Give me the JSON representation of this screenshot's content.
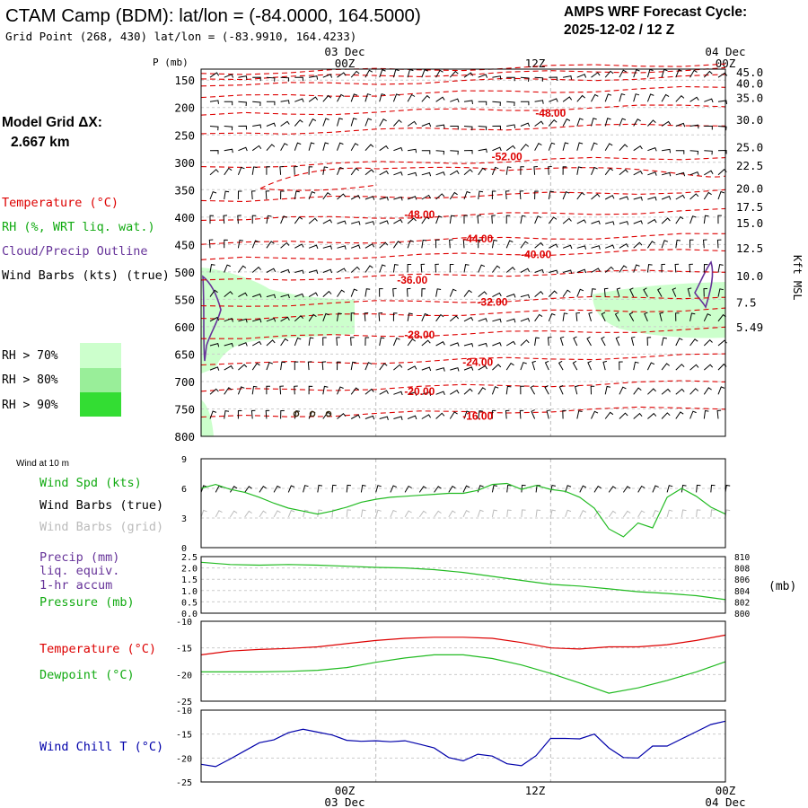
{
  "header": {
    "title": "CTAM Camp (BDM):  lat/lon = (-84.0000, 164.5000)",
    "subtitle": "Grid Point (268, 430) lat/lon = (-83.9910, 164.4233)",
    "cycle_label": "AMPS WRF Forecast Cycle:",
    "cycle_value": "2025-12-02 / 12  Z"
  },
  "side": {
    "grid_label": "Model Grid ΔX:",
    "grid_value": "2.667 km",
    "legend_temperature": "Temperature (°C)",
    "legend_rh": "RH (%, WRT liq. wat.)",
    "legend_cloud": "Cloud/Precip Outline",
    "legend_wind": "Wind Barbs (kts) (true)",
    "rh_keys": [
      {
        "label": "RH > 70%",
        "color": "#ccffcc"
      },
      {
        "label": "RH > 80%",
        "color": "#99ee99"
      },
      {
        "label": "RH > 90%",
        "color": "#33dd33"
      }
    ]
  },
  "time_axis": {
    "top_dates": [
      "03 Dec",
      "04 Dec"
    ],
    "bottom_dates": [
      "03 Dec",
      "04 Dec"
    ],
    "ticks": [
      "00Z",
      "12Z",
      "00Z"
    ]
  },
  "colors": {
    "temperature": "#dd0000",
    "rh": "#11aa11",
    "cloud": "#663399",
    "windchill": "#0000aa",
    "grid_barb": "#bbbbbb"
  },
  "chart_data": [
    {
      "type": "contour",
      "name": "time-height-cross-section",
      "ylabel": "P (mb)",
      "pressure_ticks": [
        "150",
        "200",
        "250",
        "300",
        "350",
        "400",
        "450",
        "500",
        "550",
        "600",
        "650",
        "700",
        "750",
        "800"
      ],
      "ylim_mb": [
        800,
        130
      ],
      "xlim_hours": [
        -12,
        24
      ],
      "height_ticks": [
        "45.0",
        "40.0",
        "35.0",
        "30.0",
        "25.0",
        "22.5",
        "20.0",
        "17.5",
        "15.0",
        "12.5",
        "10.0",
        "7.5",
        "5.49"
      ],
      "height_label": "Kft MSL",
      "temperature_labels": [
        {
          "text": "-48.00",
          "hour": 12,
          "p": 210
        },
        {
          "text": "-52.00",
          "hour": 9,
          "p": 290
        },
        {
          "text": "-48.00",
          "hour": 3,
          "p": 395
        },
        {
          "text": "-44.00",
          "hour": 7,
          "p": 440
        },
        {
          "text": "-40.00",
          "hour": 11,
          "p": 468
        },
        {
          "text": "-36.00",
          "hour": 2.5,
          "p": 515
        },
        {
          "text": "-32.00",
          "hour": 8,
          "p": 555
        },
        {
          "text": "-28.00",
          "hour": 3,
          "p": 615
        },
        {
          "text": "-24.00",
          "hour": 7,
          "p": 665
        },
        {
          "text": "-20.00",
          "hour": 3,
          "p": 718
        },
        {
          "text": "-16.00",
          "hour": 7,
          "p": 763
        }
      ]
    },
    {
      "type": "line",
      "name": "wind-10m",
      "panel_label": "Wind at 10 m",
      "labels": [
        "Wind Spd (kts)",
        "Wind Barbs (true)",
        "Wind Barbs (grid)"
      ],
      "ylim": [
        0,
        9
      ],
      "yticks": [
        "9",
        "6",
        "3",
        "0"
      ],
      "x": [
        -12,
        -11,
        -10,
        -9,
        -8,
        -7,
        -6,
        -5,
        -4,
        -3,
        -2,
        -1,
        0,
        1,
        2,
        3,
        4,
        5,
        6,
        7,
        8,
        9,
        10,
        11,
        12,
        13,
        14,
        15,
        16,
        17,
        18,
        19,
        20,
        21,
        22,
        23,
        24
      ],
      "series": [
        {
          "name": "Wind Spd (kts)",
          "values": [
            6.0,
            6.4,
            5.9,
            5.6,
            5.1,
            4.5,
            4.0,
            3.7,
            3.4,
            3.7,
            4.1,
            4.6,
            4.9,
            5.1,
            5.2,
            5.3,
            5.4,
            5.5,
            5.5,
            5.8,
            6.4,
            6.5,
            5.9,
            6.3,
            5.9,
            5.7,
            5.1,
            4.0,
            1.9,
            1.1,
            2.5,
            2.0,
            5.1,
            6.0,
            5.2,
            4.1,
            3.4
          ]
        }
      ]
    },
    {
      "type": "line",
      "name": "pressure-precip",
      "labels": [
        "Precip (mm)",
        "liq. equiv.",
        "1-hr accum",
        "Pressure (mb)"
      ],
      "units_label": "(mb)",
      "left_ticks": [
        "2.5",
        "2.0",
        "1.5",
        "1.0",
        "0.5",
        "0.0"
      ],
      "right_ticks": [
        "810",
        "808",
        "806",
        "804",
        "802",
        "800"
      ],
      "ylim": [
        800,
        810
      ],
      "x": [
        -12,
        -10,
        -8,
        -6,
        -4,
        -2,
        0,
        2,
        4,
        6,
        8,
        10,
        12,
        14,
        16,
        18,
        20,
        22,
        24
      ],
      "series": [
        {
          "name": "Pressure (mb)",
          "values": [
            809.0,
            808.6,
            808.5,
            808.6,
            808.5,
            808.3,
            808.1,
            808.0,
            807.7,
            807.2,
            806.5,
            805.8,
            805.1,
            804.8,
            804.3,
            803.8,
            803.5,
            803.1,
            802.4
          ]
        }
      ]
    },
    {
      "type": "line",
      "name": "temperature-dewpoint",
      "labels": [
        "Temperature (°C)",
        "Dewpoint (°C)"
      ],
      "yticks": [
        "-10",
        "-15",
        "-20",
        "-25"
      ],
      "ylim": [
        -25,
        -10
      ],
      "x": [
        -12,
        -10,
        -8,
        -6,
        -4,
        -2,
        0,
        2,
        4,
        6,
        8,
        10,
        12,
        14,
        16,
        18,
        20,
        22,
        24
      ],
      "series": [
        {
          "name": "Temperature",
          "values": [
            -16.3,
            -15.6,
            -15.3,
            -15.1,
            -14.8,
            -14.2,
            -13.6,
            -13.2,
            -13.0,
            -13.0,
            -13.2,
            -14.0,
            -15.0,
            -15.2,
            -14.8,
            -14.8,
            -14.4,
            -13.6,
            -12.6
          ]
        },
        {
          "name": "Dewpoint",
          "values": [
            -19.5,
            -19.5,
            -19.5,
            -19.4,
            -19.2,
            -18.7,
            -17.7,
            -16.9,
            -16.3,
            -16.3,
            -17.0,
            -18.2,
            -19.8,
            -21.6,
            -23.5,
            -22.5,
            -21.1,
            -19.5,
            -17.6
          ]
        }
      ]
    },
    {
      "type": "line",
      "name": "wind-chill",
      "labels": [
        "Wind Chill T (°C)"
      ],
      "yticks": [
        "-10",
        "-15",
        "-20",
        "-25"
      ],
      "ylim": [
        -25,
        -10
      ],
      "x": [
        -12,
        -11,
        -10,
        -9,
        -8,
        -7,
        -6,
        -5,
        -4,
        -3,
        -2,
        -1,
        0,
        1,
        2,
        3,
        4,
        5,
        6,
        7,
        8,
        9,
        10,
        11,
        12,
        13,
        14,
        15,
        16,
        17,
        18,
        19,
        20,
        21,
        22,
        23,
        24
      ],
      "series": [
        {
          "name": "Wind Chill",
          "values": [
            -21.3,
            -21.8,
            -20.2,
            -18.5,
            -16.8,
            -16.2,
            -14.7,
            -14.0,
            -14.6,
            -15.2,
            -16.3,
            -16.5,
            -16.4,
            -16.6,
            -16.4,
            -17.1,
            -17.9,
            -19.9,
            -20.6,
            -19.2,
            -19.6,
            -21.2,
            -21.6,
            -19.5,
            -15.9,
            -15.9,
            -16.0,
            -15.0,
            -17.9,
            -19.9,
            -20.0,
            -17.5,
            -17.5,
            -16.0,
            -14.5,
            -13.0,
            -12.3
          ]
        }
      ]
    }
  ]
}
